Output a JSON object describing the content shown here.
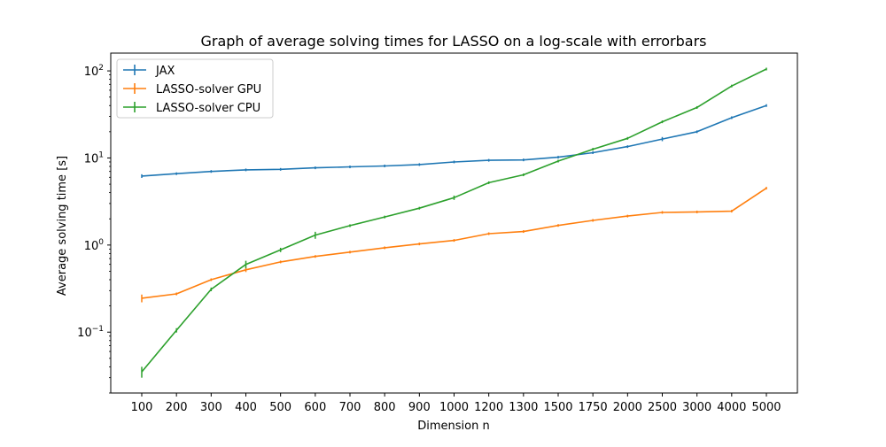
{
  "chart_data": {
    "type": "line",
    "title": "Graph of average solving times for LASSO on a log-scale with errorbars",
    "xlabel": "Dimension n",
    "ylabel": "Average solving time [s]",
    "yscale": "log",
    "ylim": [
      0.02,
      160
    ],
    "ytick_values": [
      0.1,
      1,
      10,
      100
    ],
    "ytick_labels": [
      {
        "base": "10",
        "exp": "−1"
      },
      {
        "base": "10",
        "exp": "0"
      },
      {
        "base": "10",
        "exp": "1"
      },
      {
        "base": "10",
        "exp": "2"
      }
    ],
    "categories": [
      "100",
      "200",
      "300",
      "400",
      "500",
      "600",
      "700",
      "800",
      "900",
      "1000",
      "1200",
      "1300",
      "1500",
      "1750",
      "2000",
      "2500",
      "3000",
      "4000",
      "5000"
    ],
    "grid": false,
    "legend_position": "upper-left",
    "series": [
      {
        "name": "JAX",
        "color": "#1f77b4",
        "values": [
          6.2,
          6.6,
          7.0,
          7.3,
          7.4,
          7.7,
          7.9,
          8.1,
          8.4,
          9.0,
          9.4,
          9.5,
          10.2,
          11.5,
          13.5,
          16.5,
          20.0,
          29.0,
          40.0
        ],
        "errors": [
          0.3,
          0.15,
          0.1,
          0.15,
          0.1,
          0.12,
          0.15,
          0.12,
          0.12,
          0.2,
          0.25,
          0.3,
          0.2,
          0.3,
          0.4,
          0.9,
          0.5,
          0.4,
          0.5
        ]
      },
      {
        "name": "LASSO-solver GPU",
        "color": "#ff7f0e",
        "values": [
          0.245,
          0.275,
          0.4,
          0.52,
          0.64,
          0.74,
          0.83,
          0.93,
          1.03,
          1.13,
          1.35,
          1.43,
          1.68,
          1.92,
          2.15,
          2.37,
          2.4,
          2.45,
          4.5
        ],
        "errors": [
          0.025,
          0.01,
          0.01,
          0.03,
          0.015,
          0.01,
          0.01,
          0.01,
          0.01,
          0.01,
          0.01,
          0.01,
          0.01,
          0.01,
          0.01,
          0.01,
          0.01,
          0.01,
          0.05
        ]
      },
      {
        "name": "LASSO-solver CPU",
        "color": "#2ca02c",
        "values": [
          0.035,
          0.105,
          0.31,
          0.6,
          0.88,
          1.3,
          1.67,
          2.1,
          2.65,
          3.5,
          5.2,
          6.4,
          9.2,
          12.6,
          16.8,
          26.0,
          38.0,
          67.0,
          105.0
        ],
        "errors": [
          0.005,
          0.006,
          0.015,
          0.06,
          0.05,
          0.12,
          0.06,
          0.05,
          0.05,
          0.2,
          0.1,
          0.1,
          0.1,
          0.2,
          0.3,
          0.5,
          0.5,
          1.0,
          1.0
        ]
      }
    ]
  }
}
